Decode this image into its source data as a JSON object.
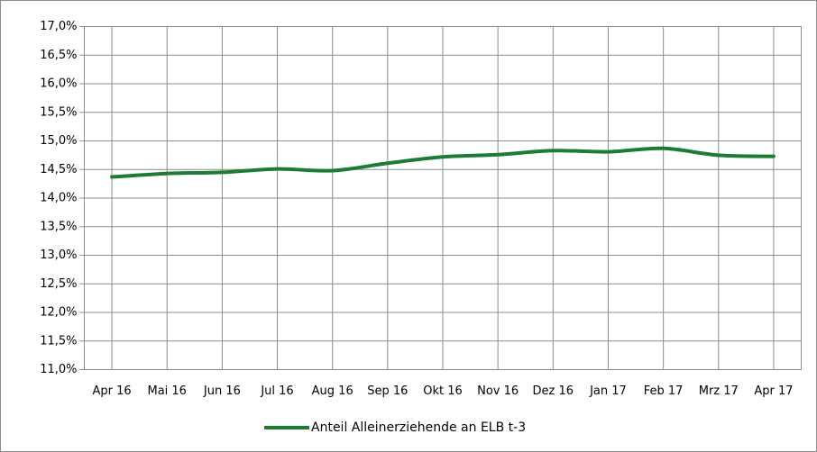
{
  "chart_data": {
    "type": "line",
    "categories": [
      "Apr 16",
      "Mai 16",
      "Jun 16",
      "Jul 16",
      "Aug 16",
      "Sep 16",
      "Okt 16",
      "Nov 16",
      "Dez 16",
      "Jan 17",
      "Feb 17",
      "Mrz 17",
      "Apr 17"
    ],
    "series": [
      {
        "name": "Anteil Alleinerziehende an ELB t-3",
        "color": "#1e7b33",
        "values": [
          14.37,
          14.43,
          14.45,
          14.51,
          14.48,
          14.61,
          14.72,
          14.76,
          14.83,
          14.81,
          14.87,
          14.75,
          14.73
        ]
      }
    ],
    "ylim": [
      11,
      17
    ],
    "yticks": [
      {
        "value": 11,
        "label": "11,0%"
      },
      {
        "value": 11.5,
        "label": "11,5%"
      },
      {
        "value": 12,
        "label": "12,0%"
      },
      {
        "value": 12.5,
        "label": "12,5%"
      },
      {
        "value": 13,
        "label": "13,0%"
      },
      {
        "value": 13.5,
        "label": "13,5%"
      },
      {
        "value": 14,
        "label": "14,0%"
      },
      {
        "value": 14.5,
        "label": "14,5%"
      },
      {
        "value": 15,
        "label": "15,0%"
      },
      {
        "value": 15.5,
        "label": "15,5%"
      },
      {
        "value": 16,
        "label": "16,0%"
      },
      {
        "value": 16.5,
        "label": "16,5%"
      },
      {
        "value": 17,
        "label": "17,0%"
      }
    ],
    "grid": true,
    "legend": "bottom"
  }
}
